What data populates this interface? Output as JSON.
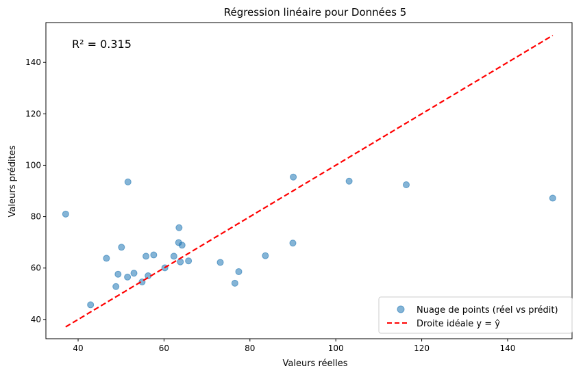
{
  "chart_data": {
    "type": "scatter",
    "title": "Régression linéaire pour Données 5",
    "xlabel": "Valeurs réelles",
    "ylabel": "Valeurs prédites",
    "xlim": [
      32.5,
      155.0
    ],
    "ylim": [
      32.5,
      155.5
    ],
    "xticks": [
      40,
      60,
      80,
      100,
      120,
      140
    ],
    "yticks": [
      40,
      60,
      80,
      100,
      120,
      140
    ],
    "annotation": "R² = 0.315",
    "grid": false,
    "legend_position": "lower-right",
    "series": [
      {
        "name": "Nuage de points (réel vs prédit)",
        "kind": "scatter",
        "color": "#1f77b4",
        "points": [
          [
            37.1,
            81.0
          ],
          [
            42.9,
            45.7
          ],
          [
            46.6,
            63.8
          ],
          [
            48.8,
            52.8
          ],
          [
            49.3,
            57.6
          ],
          [
            50.1,
            68.1
          ],
          [
            51.5,
            56.5
          ],
          [
            51.6,
            93.5
          ],
          [
            53.0,
            58.0
          ],
          [
            54.9,
            54.6
          ],
          [
            55.8,
            64.6
          ],
          [
            56.3,
            57.0
          ],
          [
            57.6,
            65.1
          ],
          [
            60.2,
            60.1
          ],
          [
            62.3,
            64.6
          ],
          [
            63.4,
            69.9
          ],
          [
            63.5,
            75.7
          ],
          [
            63.8,
            62.4
          ],
          [
            64.2,
            68.9
          ],
          [
            65.7,
            62.8
          ],
          [
            73.1,
            62.2
          ],
          [
            76.5,
            54.1
          ],
          [
            77.4,
            58.6
          ],
          [
            83.6,
            64.8
          ],
          [
            90.0,
            69.7
          ],
          [
            90.1,
            95.4
          ],
          [
            103.1,
            93.8
          ],
          [
            116.4,
            92.4
          ],
          [
            150.5,
            87.2
          ]
        ]
      },
      {
        "name": "Droite idéale y = ŷ",
        "kind": "line",
        "color": "#ff0000",
        "dash": "dashed",
        "points": [
          [
            37.1,
            37.1
          ],
          [
            150.5,
            150.5
          ]
        ]
      }
    ]
  }
}
